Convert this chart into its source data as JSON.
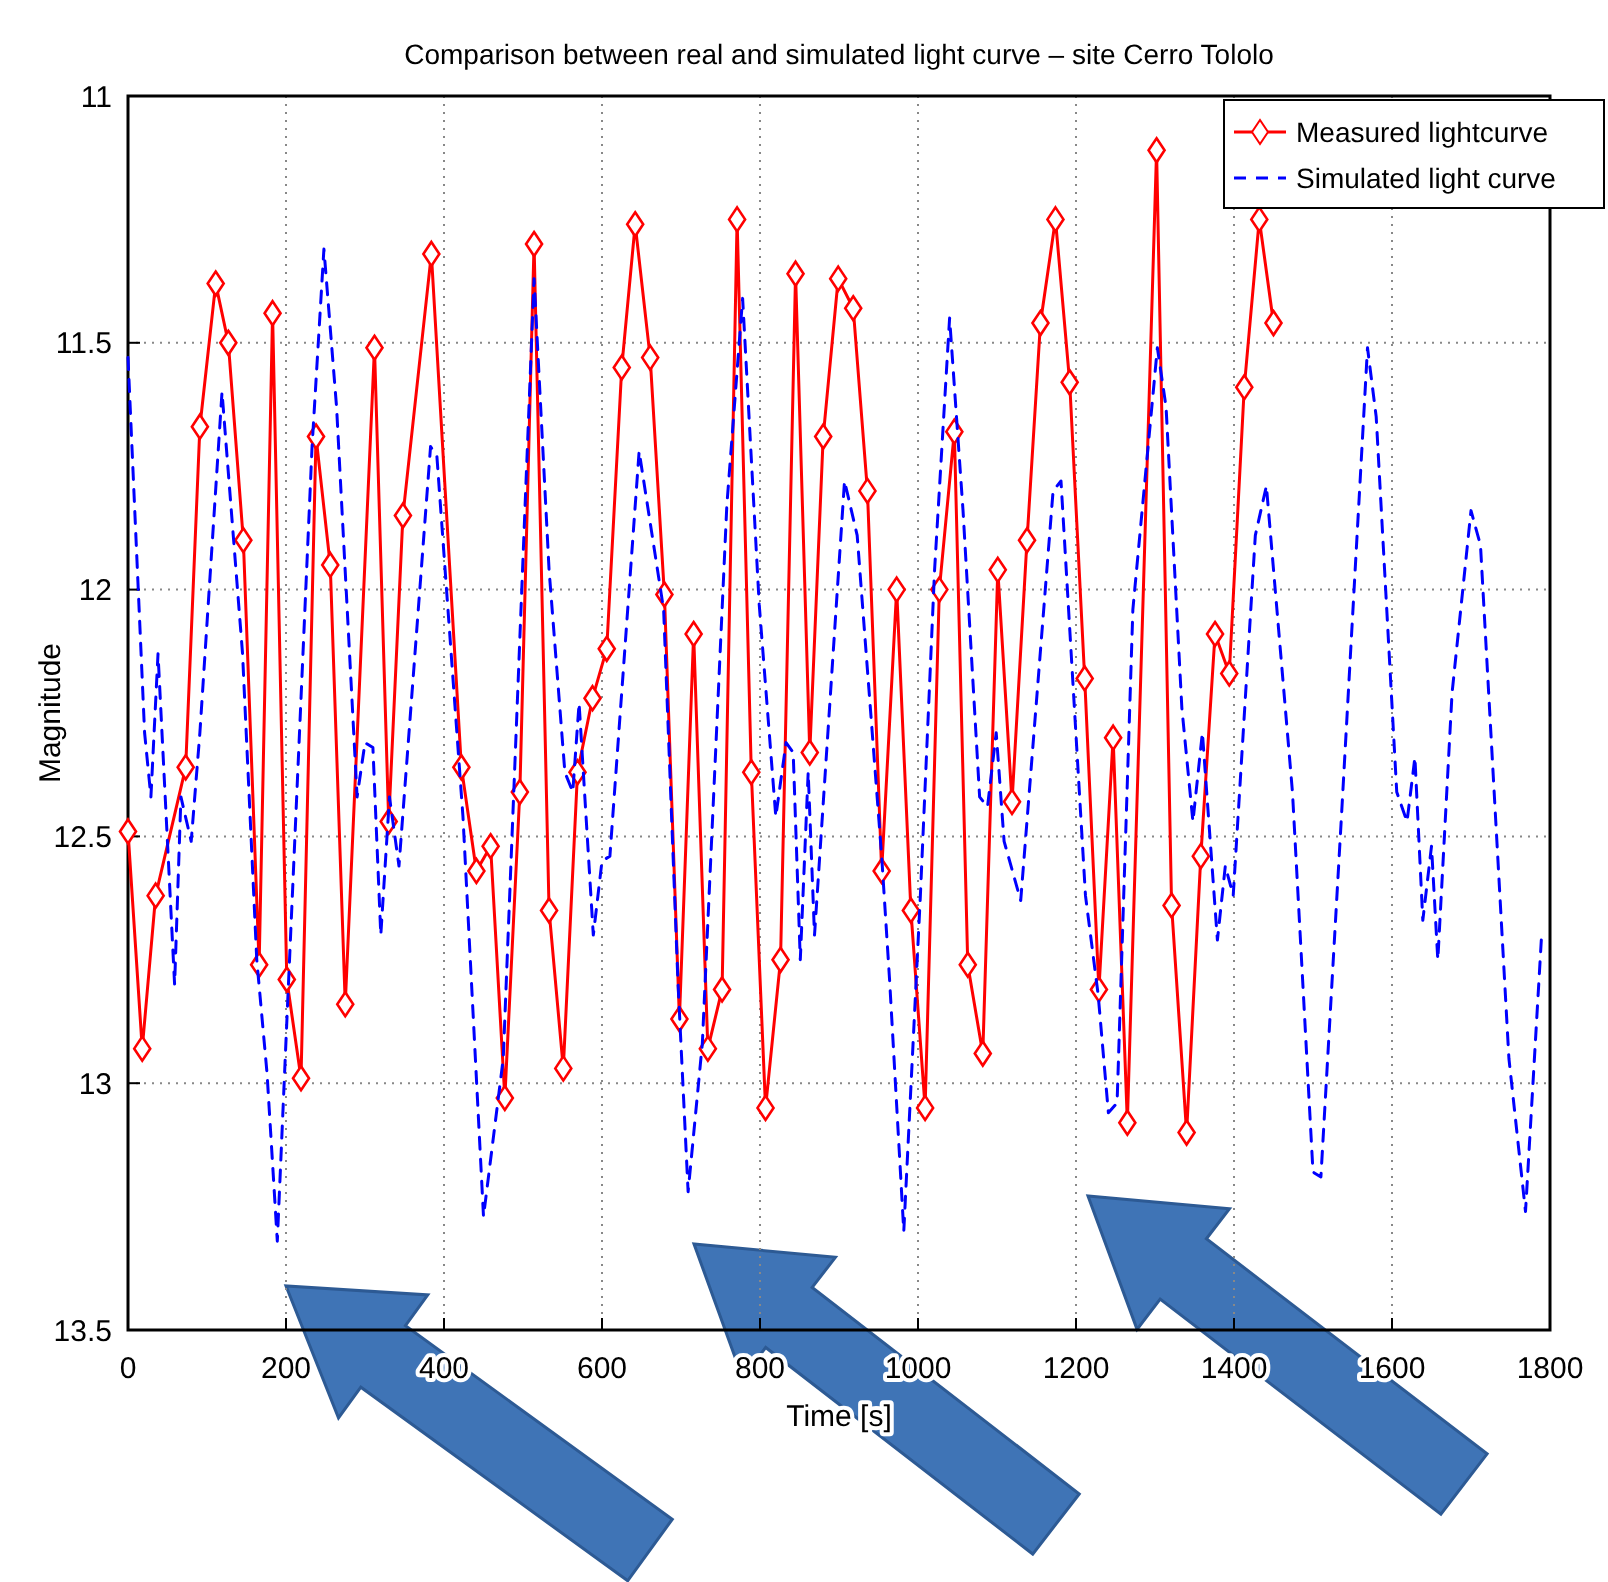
{
  "chart_data": {
    "type": "line",
    "title": "Comparison between real and simulated light curve – site Cerro Tololo",
    "xlabel": "Time [s]",
    "ylabel": "Magnitude",
    "xlim": [
      0,
      1800
    ],
    "xticks": [
      0,
      200,
      400,
      600,
      800,
      1000,
      1200,
      1400,
      1600,
      1800
    ],
    "ylim": [
      13.5,
      11
    ],
    "yticks": [
      11,
      11.5,
      12,
      12.5,
      13,
      13.5
    ],
    "grid": true,
    "legend": "top right",
    "series": [
      {
        "name": "Measured lightcurve",
        "color": "#ff0000",
        "marker": "diamond",
        "line_style": "solid",
        "x": [
          0,
          18,
          35,
          73,
          91,
          111,
          127,
          146,
          166,
          183,
          201,
          219,
          238,
          256,
          275,
          312,
          330,
          348,
          384,
          422,
          441,
          459,
          477,
          496,
          514,
          533,
          551,
          569,
          588,
          606,
          625,
          642,
          661,
          679,
          698,
          716,
          734,
          752,
          771,
          789,
          807,
          826,
          845,
          863,
          880,
          899,
          918,
          936,
          954,
          973,
          991,
          1009,
          1027,
          1046,
          1063,
          1082,
          1101,
          1119,
          1138,
          1155,
          1174,
          1192,
          1211,
          1229,
          1247,
          1265,
          1302,
          1321,
          1340,
          1358,
          1376,
          1394,
          1413,
          1432,
          1450
        ],
        "values": [
          12.49,
          12.93,
          12.62,
          12.36,
          11.67,
          11.38,
          11.5,
          11.9,
          12.76,
          11.44,
          12.79,
          12.99,
          11.69,
          11.95,
          12.84,
          11.51,
          12.47,
          11.85,
          11.32,
          12.36,
          12.57,
          12.52,
          13.03,
          12.41,
          11.3,
          12.65,
          12.97,
          12.37,
          12.22,
          12.12,
          11.55,
          11.26,
          11.53,
          12.01,
          12.87,
          12.09,
          12.93,
          12.81,
          11.25,
          12.37,
          13.05,
          12.75,
          11.36,
          12.33,
          11.69,
          11.37,
          11.43,
          11.8,
          12.57,
          12.0,
          12.65,
          13.05,
          12.0,
          11.68,
          12.76,
          12.94,
          11.96,
          12.43,
          11.9,
          11.46,
          11.25,
          11.58,
          12.18,
          12.81,
          12.3,
          13.08,
          11.11,
          12.64,
          13.1,
          12.54,
          12.09,
          12.17,
          11.59,
          11.25,
          11.46
        ]
      },
      {
        "name": "Simulated light curve",
        "color": "#0000ff",
        "marker": "none",
        "line_style": "dashed",
        "x": [
          0,
          21,
          29,
          38,
          59,
          67,
          80,
          91,
          119,
          145,
          163,
          176,
          189,
          202,
          233,
          248,
          264,
          290,
          300,
          310,
          320,
          331,
          343,
          383,
          391,
          424,
          450,
          475,
          514,
          533,
          553,
          563,
          571,
          589,
          600,
          610,
          647,
          678,
          696,
          709,
          727,
          758,
          778,
          799,
          820,
          833,
          842,
          851,
          861,
          869,
          907,
          923,
          954,
          964,
          982,
          1003,
          1021,
          1040,
          1057,
          1078,
          1088,
          1099,
          1109,
          1130,
          1171,
          1181,
          1212,
          1228,
          1241,
          1252,
          1272,
          1303,
          1314,
          1334,
          1348,
          1360,
          1379,
          1389,
          1399,
          1427,
          1441,
          1474,
          1500,
          1510,
          1536,
          1569,
          1580,
          1606,
          1619,
          1629,
          1639,
          1650,
          1658,
          1676,
          1700,
          1712,
          1748,
          1769,
          1789
        ],
        "values": [
          11.53,
          12.29,
          12.42,
          12.13,
          12.8,
          12.42,
          12.51,
          12.29,
          11.6,
          12.13,
          12.75,
          12.98,
          13.32,
          12.84,
          11.71,
          11.31,
          11.63,
          12.42,
          12.31,
          12.32,
          12.7,
          12.42,
          12.56,
          11.71,
          11.73,
          12.46,
          13.27,
          12.95,
          11.37,
          11.96,
          12.37,
          12.41,
          12.23,
          12.7,
          12.55,
          12.54,
          11.72,
          12.04,
          12.79,
          13.22,
          12.92,
          11.83,
          11.41,
          12.03,
          12.46,
          12.31,
          12.33,
          12.75,
          12.37,
          12.7,
          11.78,
          11.89,
          12.54,
          12.79,
          13.3,
          12.62,
          11.96,
          11.45,
          11.84,
          12.42,
          12.44,
          12.29,
          12.51,
          12.63,
          11.8,
          11.78,
          12.62,
          12.82,
          13.06,
          13.04,
          12.04,
          11.51,
          11.63,
          12.24,
          12.47,
          12.29,
          12.71,
          12.56,
          12.62,
          11.89,
          11.79,
          12.41,
          13.18,
          13.19,
          12.46,
          11.51,
          11.65,
          12.41,
          12.47,
          12.34,
          12.67,
          12.52,
          12.75,
          12.21,
          11.84,
          11.91,
          12.95,
          13.26,
          12.71
        ]
      }
    ]
  }
}
